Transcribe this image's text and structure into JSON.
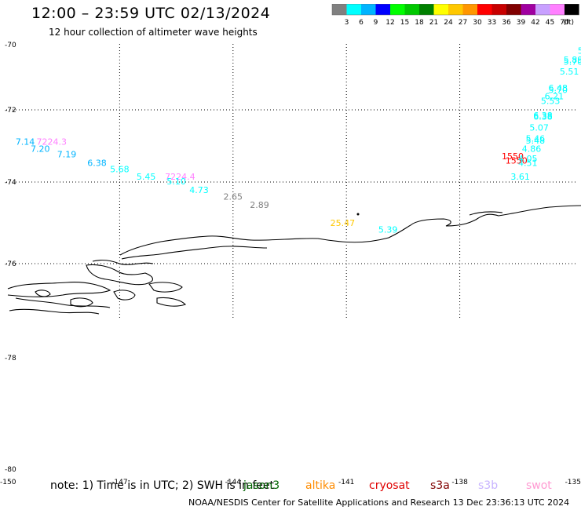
{
  "header": {
    "title": "12:00 – 23:59 UTC 02/13/2024",
    "subtitle": "12 hour collection of altimeter wave heights"
  },
  "scale": {
    "colors": [
      "#808080",
      "#00ffff",
      "#00b4ff",
      "#0000ff",
      "#00ff00",
      "#00c800",
      "#008000",
      "#ffff00",
      "#ffc800",
      "#ff9600",
      "#ff0000",
      "#c80000",
      "#800000",
      "#a000a0",
      "#c8a0ff",
      "#ff80ff",
      "#000000"
    ],
    "labels": [
      "3",
      "6",
      "9",
      "12",
      "15",
      "18",
      "21",
      "24",
      "27",
      "30",
      "33",
      "36",
      "39",
      "42",
      "45",
      "70"
    ],
    "unit": "(ft)"
  },
  "axes": {
    "y_ticks": [
      "-70",
      "-72",
      "-74",
      "-76",
      "-78",
      "-80"
    ],
    "x_ticks": [
      "-150",
      "-147",
      "-144",
      "-141",
      "-138",
      "-135"
    ]
  },
  "chart_data": {
    "type": "scatter",
    "x_ticks": [
      -150,
      -147,
      -144,
      -141,
      -138,
      -135
    ],
    "y_ticks": [
      -70,
      -72,
      -74,
      -76,
      -78,
      -80
    ],
    "xlim": [
      -150,
      -135
    ],
    "ylim": [
      -80,
      -69.8
    ],
    "grid": true,
    "points": [
      {
        "label": "7.14",
        "x": -149.5,
        "y": -72.97,
        "color": "#00b4ff"
      },
      {
        "label": "7224.3",
        "x": -148.8,
        "y": -72.97,
        "color": "#ff80ff"
      },
      {
        "label": "7.20",
        "x": -149.1,
        "y": -73.16,
        "color": "#00b4ff"
      },
      {
        "label": "7.19",
        "x": -148.4,
        "y": -73.31,
        "color": "#00b4ff"
      },
      {
        "label": "6.38",
        "x": -147.6,
        "y": -73.55,
        "color": "#00b4ff"
      },
      {
        "label": "5.68",
        "x": -147.0,
        "y": -73.73,
        "color": "#00ffff"
      },
      {
        "label": "5.45",
        "x": -146.3,
        "y": -73.94,
        "color": "#00ffff"
      },
      {
        "label": "7224.4",
        "x": -145.4,
        "y": -73.94,
        "color": "#ff80ff"
      },
      {
        "label": "5.10",
        "x": -145.5,
        "y": -74.06,
        "color": "#00ffff"
      },
      {
        "label": "4.73",
        "x": -144.9,
        "y": -74.27,
        "color": "#00ffff"
      },
      {
        "label": "2.65",
        "x": -144.0,
        "y": -74.43,
        "color": "#808080"
      },
      {
        "label": "2.89",
        "x": -143.3,
        "y": -74.63,
        "color": "#808080"
      },
      {
        "label": "25.47",
        "x": -141.1,
        "y": -75.08,
        "color": "#ffc800"
      },
      {
        "label": "5.39",
        "x": -139.9,
        "y": -75.24,
        "color": "#00ffff"
      },
      {
        "label": "3.61",
        "x": -136.4,
        "y": -73.94,
        "color": "#00ffff"
      },
      {
        "label": "4.51",
        "x": -136.2,
        "y": -73.55,
        "color": "#00ffff"
      },
      {
        "label": "1550",
        "x": -136.6,
        "y": -73.37,
        "color": "#ff0000"
      },
      {
        "label": "1550",
        "x": -136.5,
        "y": -73.49,
        "color": "#ff0000"
      },
      {
        "label": "4.05",
        "x": -136.2,
        "y": -73.43,
        "color": "#00ffff"
      },
      {
        "label": "4.86",
        "x": -136.1,
        "y": -73.16,
        "color": "#00ffff"
      },
      {
        "label": "5.48",
        "x": -136.0,
        "y": -72.94,
        "color": "#00ffff"
      },
      {
        "label": "5.46",
        "x": -136.0,
        "y": -72.88,
        "color": "#00ffff"
      },
      {
        "label": "5.07",
        "x": -135.9,
        "y": -72.58,
        "color": "#00ffff"
      },
      {
        "label": "6.38",
        "x": -135.8,
        "y": -72.24,
        "color": "#00ffff"
      },
      {
        "label": "6.38",
        "x": -135.8,
        "y": -72.27,
        "color": "#00ffff"
      },
      {
        "label": "5.53",
        "x": -135.6,
        "y": -71.82,
        "color": "#00ffff"
      },
      {
        "label": "6.21",
        "x": -135.5,
        "y": -71.67,
        "color": "#00ffff"
      },
      {
        "label": "5.70",
        "x": -135.4,
        "y": -71.48,
        "color": "#00ffff"
      },
      {
        "label": "6.48",
        "x": -135.4,
        "y": -71.42,
        "color": "#00ffff"
      },
      {
        "label": "5.51",
        "x": -135.1,
        "y": -70.91,
        "color": "#00ffff"
      },
      {
        "label": "5.70",
        "x": -135.0,
        "y": -70.61,
        "color": "#00ffff"
      },
      {
        "label": "5.89",
        "x": -135.0,
        "y": -70.55,
        "color": "#00ffff"
      },
      {
        "label": "5.8",
        "x": -134.7,
        "y": -70.28,
        "color": "#00ffff"
      },
      {
        "label": "6.4",
        "x": -134.6,
        "y": -69.98,
        "color": "#00ffff"
      }
    ]
  },
  "footer": {
    "note": "note:  1) Time is in UTC;  2) SWH is in feet",
    "missions": [
      {
        "name": "jason3",
        "color": "#006400"
      },
      {
        "name": "altika",
        "color": "#ff8c00"
      },
      {
        "name": "cryosat",
        "color": "#e00000"
      },
      {
        "name": "s3a",
        "color": "#800000"
      },
      {
        "name": "s3b",
        "color": "#c8b4ff"
      },
      {
        "name": "swot",
        "color": "#ff9ad2"
      }
    ],
    "credit": "NOAA/NESDIS Center for Satellite Applications and Research    13 Dec 23:36:13 UTC 2024"
  }
}
